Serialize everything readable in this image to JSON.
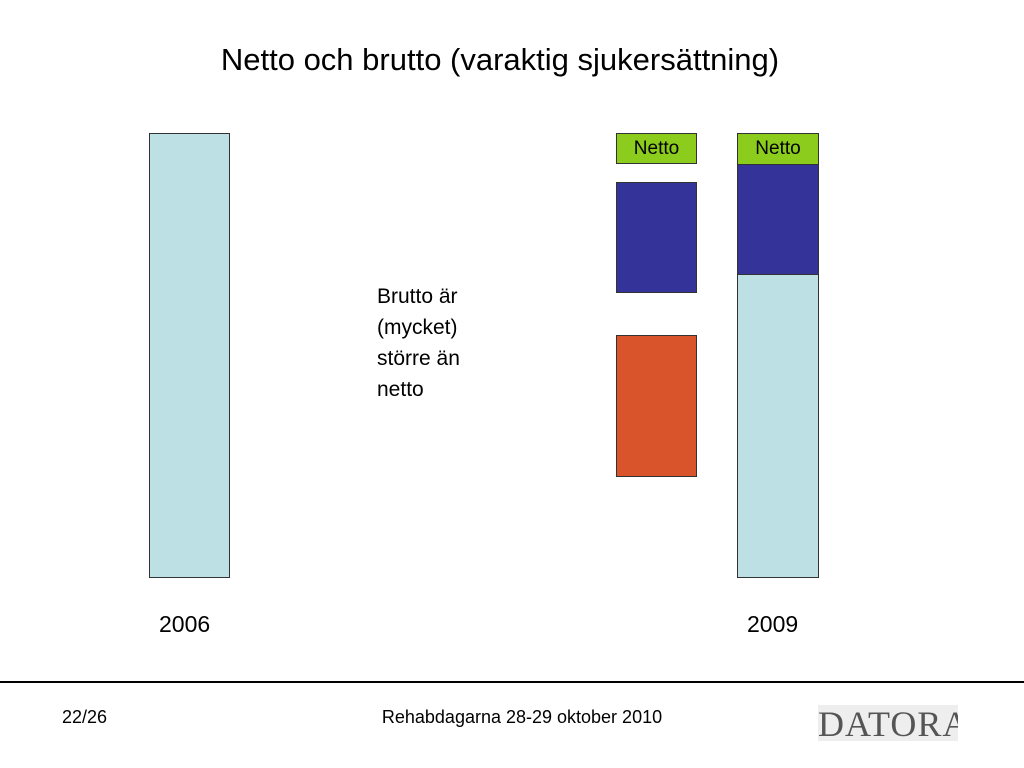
{
  "title": "Netto och brutto (varaktig sjukersättning)",
  "bars": {
    "middle_netto_label": "Netto",
    "right_netto_label": "Netto"
  },
  "note": "Brutto är\n(mycket)\nstörre än\nnetto",
  "years": {
    "left": "2006",
    "right": "2009"
  },
  "footer": {
    "page": "22/26",
    "text": "Rehabdagarna 28-29 oktober 2010",
    "logo": "DATORA"
  },
  "colors": {
    "light_blue": "#bce0e4",
    "dark_blue": "#333399",
    "red_orange": "#d9532b",
    "green": "#8ccc1c"
  }
}
